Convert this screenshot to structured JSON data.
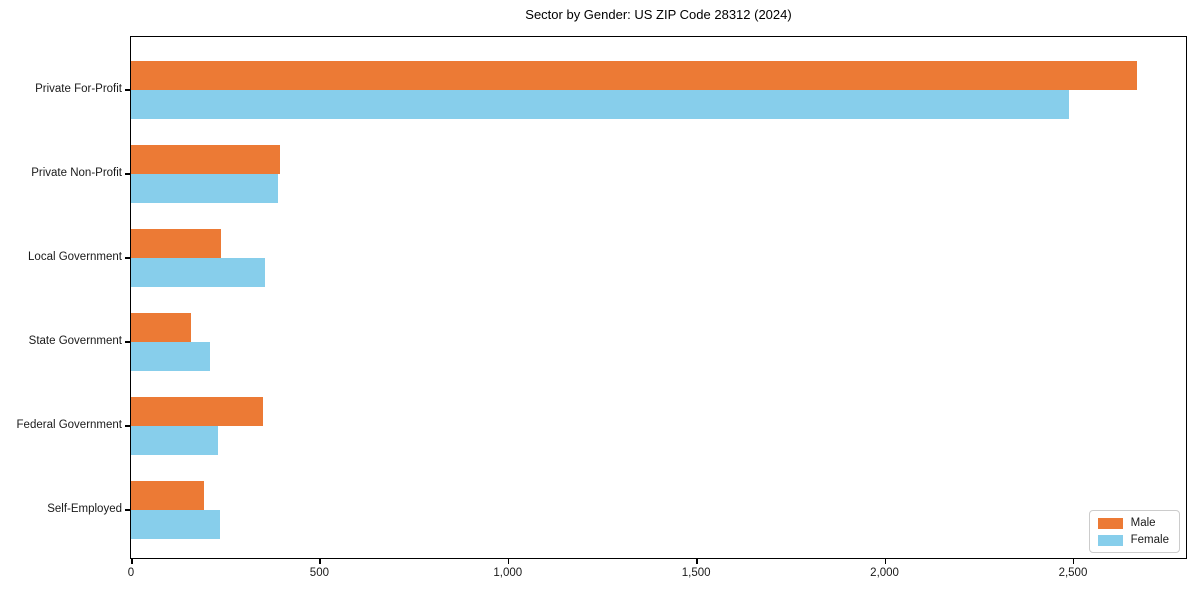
{
  "title": "Sector by Gender: US ZIP Code 28312 (2024)",
  "colors": {
    "male": "#ec7a35",
    "female": "#87ceeb",
    "axis": "#000000",
    "text": "#1a1a1a"
  },
  "chart_data": {
    "type": "bar",
    "orientation": "horizontal",
    "title": "Sector by Gender: US ZIP Code 28312 (2024)",
    "xlabel": "",
    "ylabel": "",
    "categories": [
      "Private For-Profit",
      "Private Non-Profit",
      "Local Government",
      "State Government",
      "Federal Government",
      "Self-Employed"
    ],
    "series": [
      {
        "name": "Male",
        "color": "#ec7a35",
        "values": [
          2670,
          395,
          240,
          160,
          350,
          195
        ]
      },
      {
        "name": "Female",
        "color": "#87ceeb",
        "values": [
          2490,
          390,
          355,
          210,
          230,
          235
        ]
      }
    ],
    "xlim": [
      0,
      2800
    ],
    "xticks": [
      0,
      500,
      1000,
      1500,
      2000,
      2500
    ],
    "xtick_labels": [
      "0",
      "500",
      "1,000",
      "1,500",
      "2,000",
      "2,500"
    ],
    "grid": false,
    "legend_position": "lower right"
  },
  "legend": {
    "items": [
      {
        "label": "Male",
        "color": "#ec7a35"
      },
      {
        "label": "Female",
        "color": "#87ceeb"
      }
    ]
  }
}
